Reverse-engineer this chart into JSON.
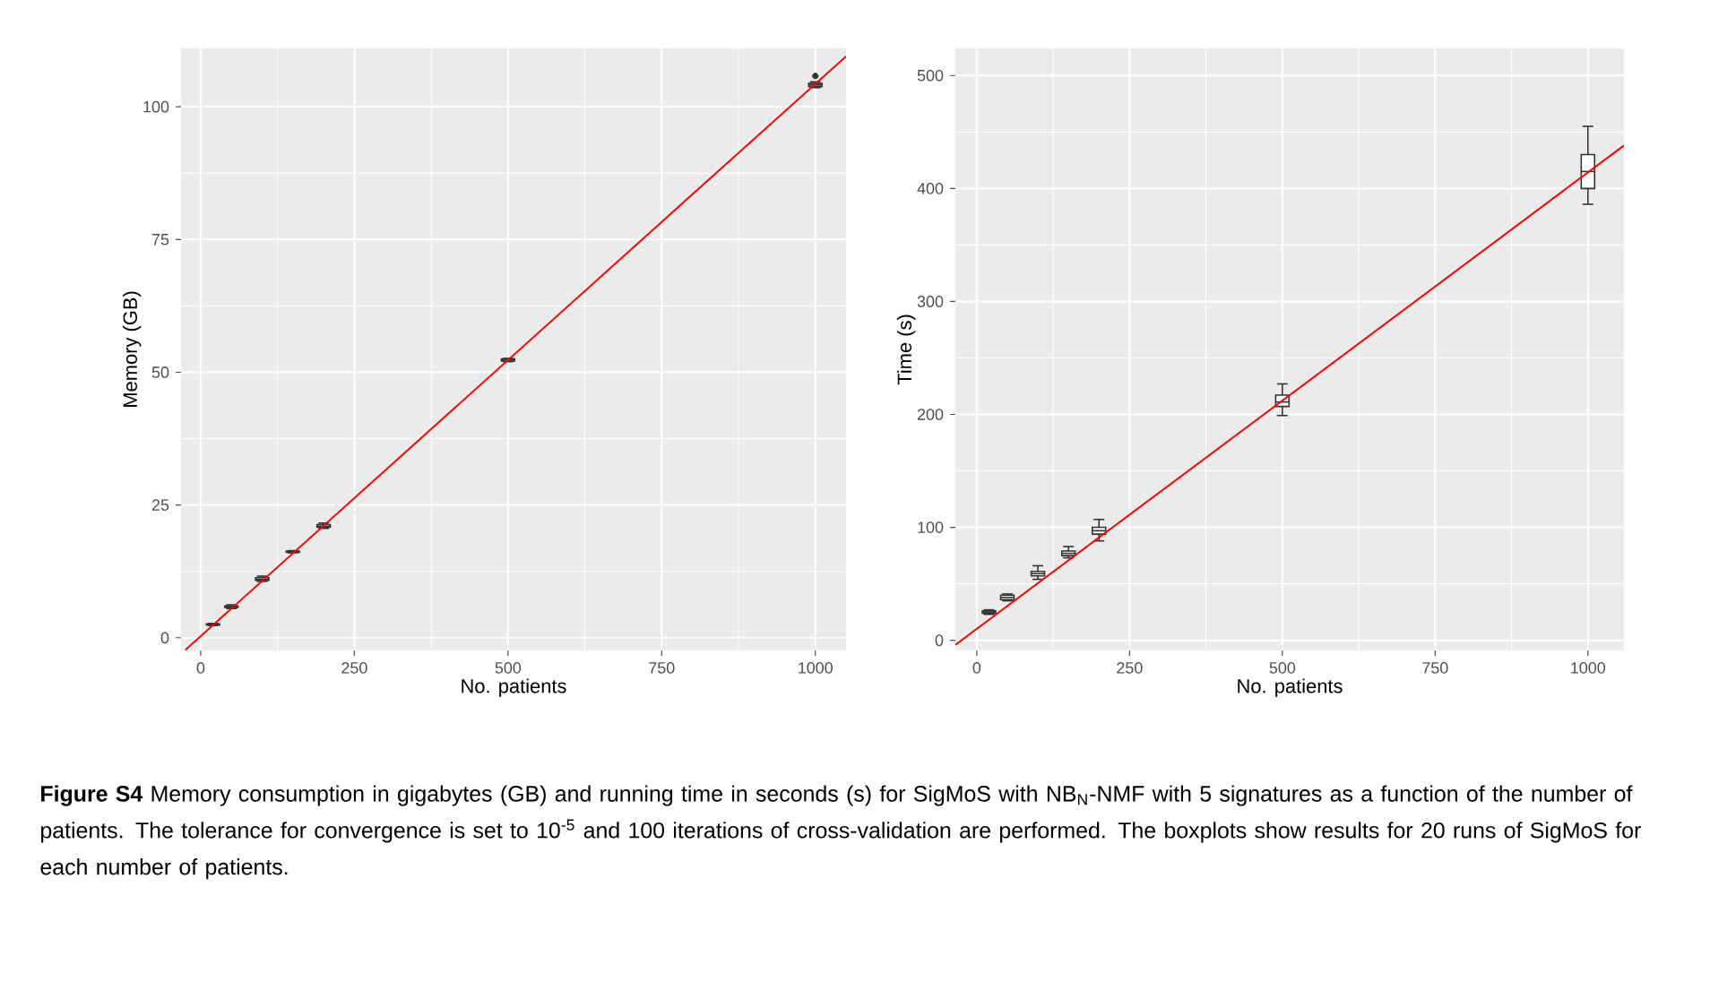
{
  "chart_data": [
    {
      "type": "box",
      "xlabel": "No. patients",
      "ylabel": "Memory (GB)",
      "grid": true,
      "x": [
        20,
        50,
        100,
        150,
        200,
        500,
        1000
      ],
      "boxes": [
        {
          "low": 2.3,
          "q1": 2.4,
          "median": 2.5,
          "q3": 2.6,
          "high": 2.7
        },
        {
          "low": 5.5,
          "q1": 5.7,
          "median": 5.8,
          "q3": 6.0,
          "high": 6.2
        },
        {
          "low": 10.6,
          "q1": 10.8,
          "median": 11.0,
          "q3": 11.3,
          "high": 11.6
        },
        {
          "low": 16.0,
          "q1": 16.1,
          "median": 16.2,
          "q3": 16.3,
          "high": 16.4
        },
        {
          "low": 20.6,
          "q1": 20.8,
          "median": 21.0,
          "q3": 21.3,
          "high": 21.6
        },
        {
          "low": 52.0,
          "q1": 52.1,
          "median": 52.3,
          "q3": 52.5,
          "high": 52.6
        },
        {
          "low": 103.6,
          "q1": 103.8,
          "median": 104.1,
          "q3": 104.4,
          "high": 104.7,
          "outliers": [
            105.8
          ]
        }
      ],
      "series": [
        {
          "type": "line",
          "color": "#ff0000",
          "x": [
            -25,
            1050
          ],
          "values": [
            -2.3,
            109.5
          ]
        }
      ],
      "xlim": [
        -32,
        1050
      ],
      "ylim": [
        -2.4,
        111
      ],
      "xticks": [
        0,
        250,
        500,
        750,
        1000
      ],
      "yticks": [
        0,
        25,
        50,
        75,
        100
      ],
      "annotations": [
        "**Figure S4** Memory consumption in gigabytes (GB) and running time in seconds (s) for SigMoS with NB$_{N}$-NMF with 5 signatures as a function of the number of patients. The tolerance for convergence is set to 10$^{-5}$ and 100 iterations of cross-validation are performed. The boxplots show results for 20 runs of SigMoS for each number of patients."
      ]
    },
    {
      "type": "box",
      "xlabel": "No. patients",
      "ylabel": "Time (s)",
      "grid": true,
      "x": [
        20,
        50,
        100,
        150,
        200,
        500,
        1000
      ],
      "boxes": [
        {
          "low": 23,
          "q1": 24,
          "median": 25,
          "q3": 26,
          "high": 27
        },
        {
          "low": 35,
          "q1": 36,
          "median": 38,
          "q3": 40,
          "high": 41
        },
        {
          "low": 54,
          "q1": 57,
          "median": 59,
          "q3": 61,
          "high": 66
        },
        {
          "low": 73,
          "q1": 75,
          "median": 77,
          "q3": 79,
          "high": 83
        },
        {
          "low": 88,
          "q1": 94,
          "median": 97,
          "q3": 100,
          "high": 107
        },
        {
          "low": 199,
          "q1": 207,
          "median": 211,
          "q3": 217,
          "high": 227
        },
        {
          "low": 386,
          "q1": 400,
          "median": 415,
          "q3": 430,
          "high": 455
        }
      ],
      "series": [
        {
          "type": "line",
          "color": "#ff0000",
          "x": [
            -35,
            1059
          ],
          "values": [
            -4,
            438
          ]
        }
      ],
      "xlim": [
        -35,
        1059
      ],
      "ylim": [
        -9,
        524
      ],
      "xticks": [
        0,
        250,
        500,
        750,
        1000
      ],
      "yticks": [
        0,
        100,
        200,
        300,
        400,
        500
      ]
    }
  ]
}
